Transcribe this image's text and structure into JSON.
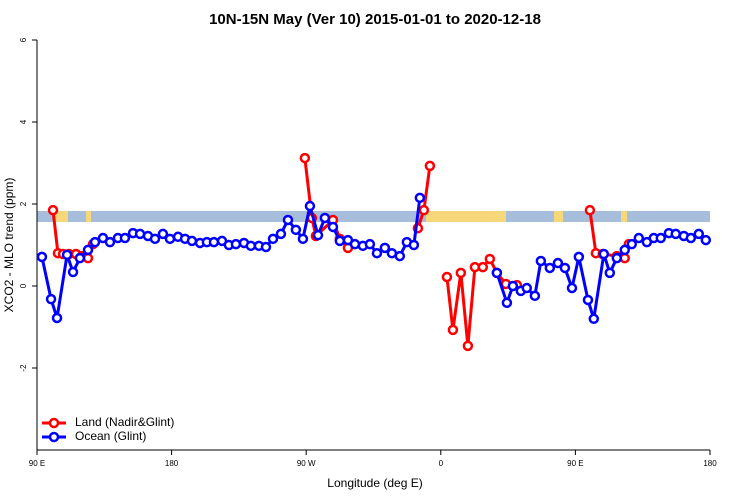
{
  "chart_data": {
    "type": "line",
    "title": "10N-15N May (Ver 10)   2015-01-01 to 2020-12-18",
    "x_label": "Longitude (deg E)",
    "y_label": "XCO2 - MLO trend (ppm)",
    "xlim": [
      90,
      540
    ],
    "xticks": [
      {
        "value": 90,
        "label": "90 E"
      },
      {
        "value": 180,
        "label": "180"
      },
      {
        "value": 270,
        "label": "90 W"
      },
      {
        "value": 360,
        "label": "0"
      },
      {
        "value": 450,
        "label": "90 E"
      },
      {
        "value": 540,
        "label": "180"
      }
    ],
    "ylim": [
      -4,
      6
    ],
    "yticks": [
      -2,
      0,
      2,
      4,
      6
    ],
    "legend": "bottom-left",
    "series": [
      {
        "name": "Land (Nadir&Glint)",
        "color": "#ff0000",
        "x": [
          100.7,
          104.0,
          107.4,
          111.4,
          116.1,
          120.1,
          124.1,
          127.4,
          null,
          269.1,
          273.8,
          276.5,
          287.9,
          292.5,
          297.9,
          null,
          344.7,
          348.7,
          352.7,
          null,
          364.1,
          368.1,
          373.4,
          378.1,
          382.8,
          388.1,
          392.8,
          397.5,
          403.5,
          410.9,
          null,
          459.7,
          463.7,
          468.3,
          477.7,
          483.0,
          485.7
        ],
        "values": [
          1.85,
          0.8,
          0.78,
          0.78,
          0.78,
          0.73,
          0.68,
          1.02,
          null,
          3.12,
          1.66,
          1.22,
          1.61,
          1.15,
          0.93,
          null,
          1.41,
          1.85,
          2.93,
          null,
          0.22,
          -1.07,
          0.32,
          -1.46,
          0.46,
          0.46,
          0.66,
          0.32,
          0.05,
          0.02,
          null,
          1.85,
          0.8,
          0.78,
          0.73,
          0.68,
          1.02
        ]
      },
      {
        "name": "Ocean (Glint)",
        "color": "#0000ff",
        "x": [
          93.3,
          99.4,
          103.4,
          110.1,
          114.1,
          118.7,
          124.1,
          128.8,
          134.1,
          138.8,
          144.1,
          148.8,
          154.2,
          158.9,
          164.2,
          168.9,
          174.2,
          178.9,
          184.3,
          189.0,
          193.6,
          199.0,
          203.6,
          208.3,
          213.7,
          218.3,
          223.0,
          228.4,
          233.0,
          238.4,
          243.1,
          247.8,
          253.1,
          257.8,
          263.1,
          267.8,
          272.5,
          277.9,
          282.5,
          287.9,
          292.5,
          297.9,
          302.6,
          307.9,
          312.6,
          317.3,
          322.6,
          327.3,
          332.6,
          337.3,
          342.0,
          346.0,
          null,
          397.5,
          404.2,
          408.2,
          413.5,
          417.5,
          422.9,
          426.9,
          432.9,
          438.3,
          443.0,
          447.7,
          452.3,
          458.4,
          462.3,
          469.0,
          473.0,
          477.7,
          483.0,
          487.7,
          492.4,
          497.8,
          502.4,
          507.1,
          512.5,
          517.1,
          522.5,
          527.2,
          532.5,
          537.2
        ],
        "values": [
          0.71,
          -0.32,
          -0.78,
          0.76,
          0.34,
          0.68,
          0.88,
          1.07,
          1.17,
          1.07,
          1.17,
          1.17,
          1.29,
          1.27,
          1.22,
          1.15,
          1.27,
          1.15,
          1.2,
          1.15,
          1.1,
          1.05,
          1.07,
          1.07,
          1.1,
          1.0,
          1.02,
          1.05,
          0.98,
          0.98,
          0.95,
          1.15,
          1.27,
          1.61,
          1.37,
          1.15,
          1.95,
          1.24,
          1.66,
          1.44,
          1.1,
          1.12,
          1.02,
          0.98,
          1.02,
          0.8,
          0.93,
          0.8,
          0.73,
          1.07,
          1.0,
          2.15,
          null,
          0.32,
          -0.41,
          0.0,
          -0.12,
          -0.05,
          -0.24,
          0.61,
          0.44,
          0.56,
          0.44,
          -0.05,
          0.71,
          -0.34,
          -0.8,
          0.78,
          0.32,
          0.68,
          0.88,
          1.02,
          1.17,
          1.07,
          1.17,
          1.17,
          1.29,
          1.27,
          1.22,
          1.17,
          1.27,
          1.12
        ]
      }
    ]
  }
}
